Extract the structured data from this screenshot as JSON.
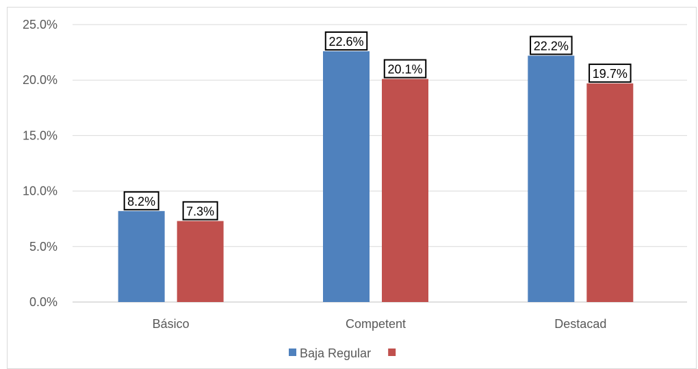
{
  "chart_data": {
    "type": "bar",
    "categories": [
      "Básico",
      "Competent",
      "Destacad"
    ],
    "series": [
      {
        "name": "Baja Regular",
        "values": [
          8.2,
          22.6,
          22.2
        ],
        "color": "#4f81bd"
      },
      {
        "name": "",
        "values": [
          7.3,
          20.1,
          19.7
        ],
        "color": "#c0504d"
      }
    ],
    "y_ticks": [
      "0.0%",
      "5.0%",
      "10.0%",
      "15.0%",
      "20.0%",
      "25.0%"
    ],
    "ylim": [
      0,
      25
    ],
    "data_labels": [
      [
        "8.2%",
        "22.6%",
        "22.2%"
      ],
      [
        "7.3%",
        "20.1%",
        "19.7%"
      ]
    ],
    "grid": true,
    "legend_position": "bottom",
    "title": "",
    "xlabel": "",
    "ylabel": ""
  }
}
